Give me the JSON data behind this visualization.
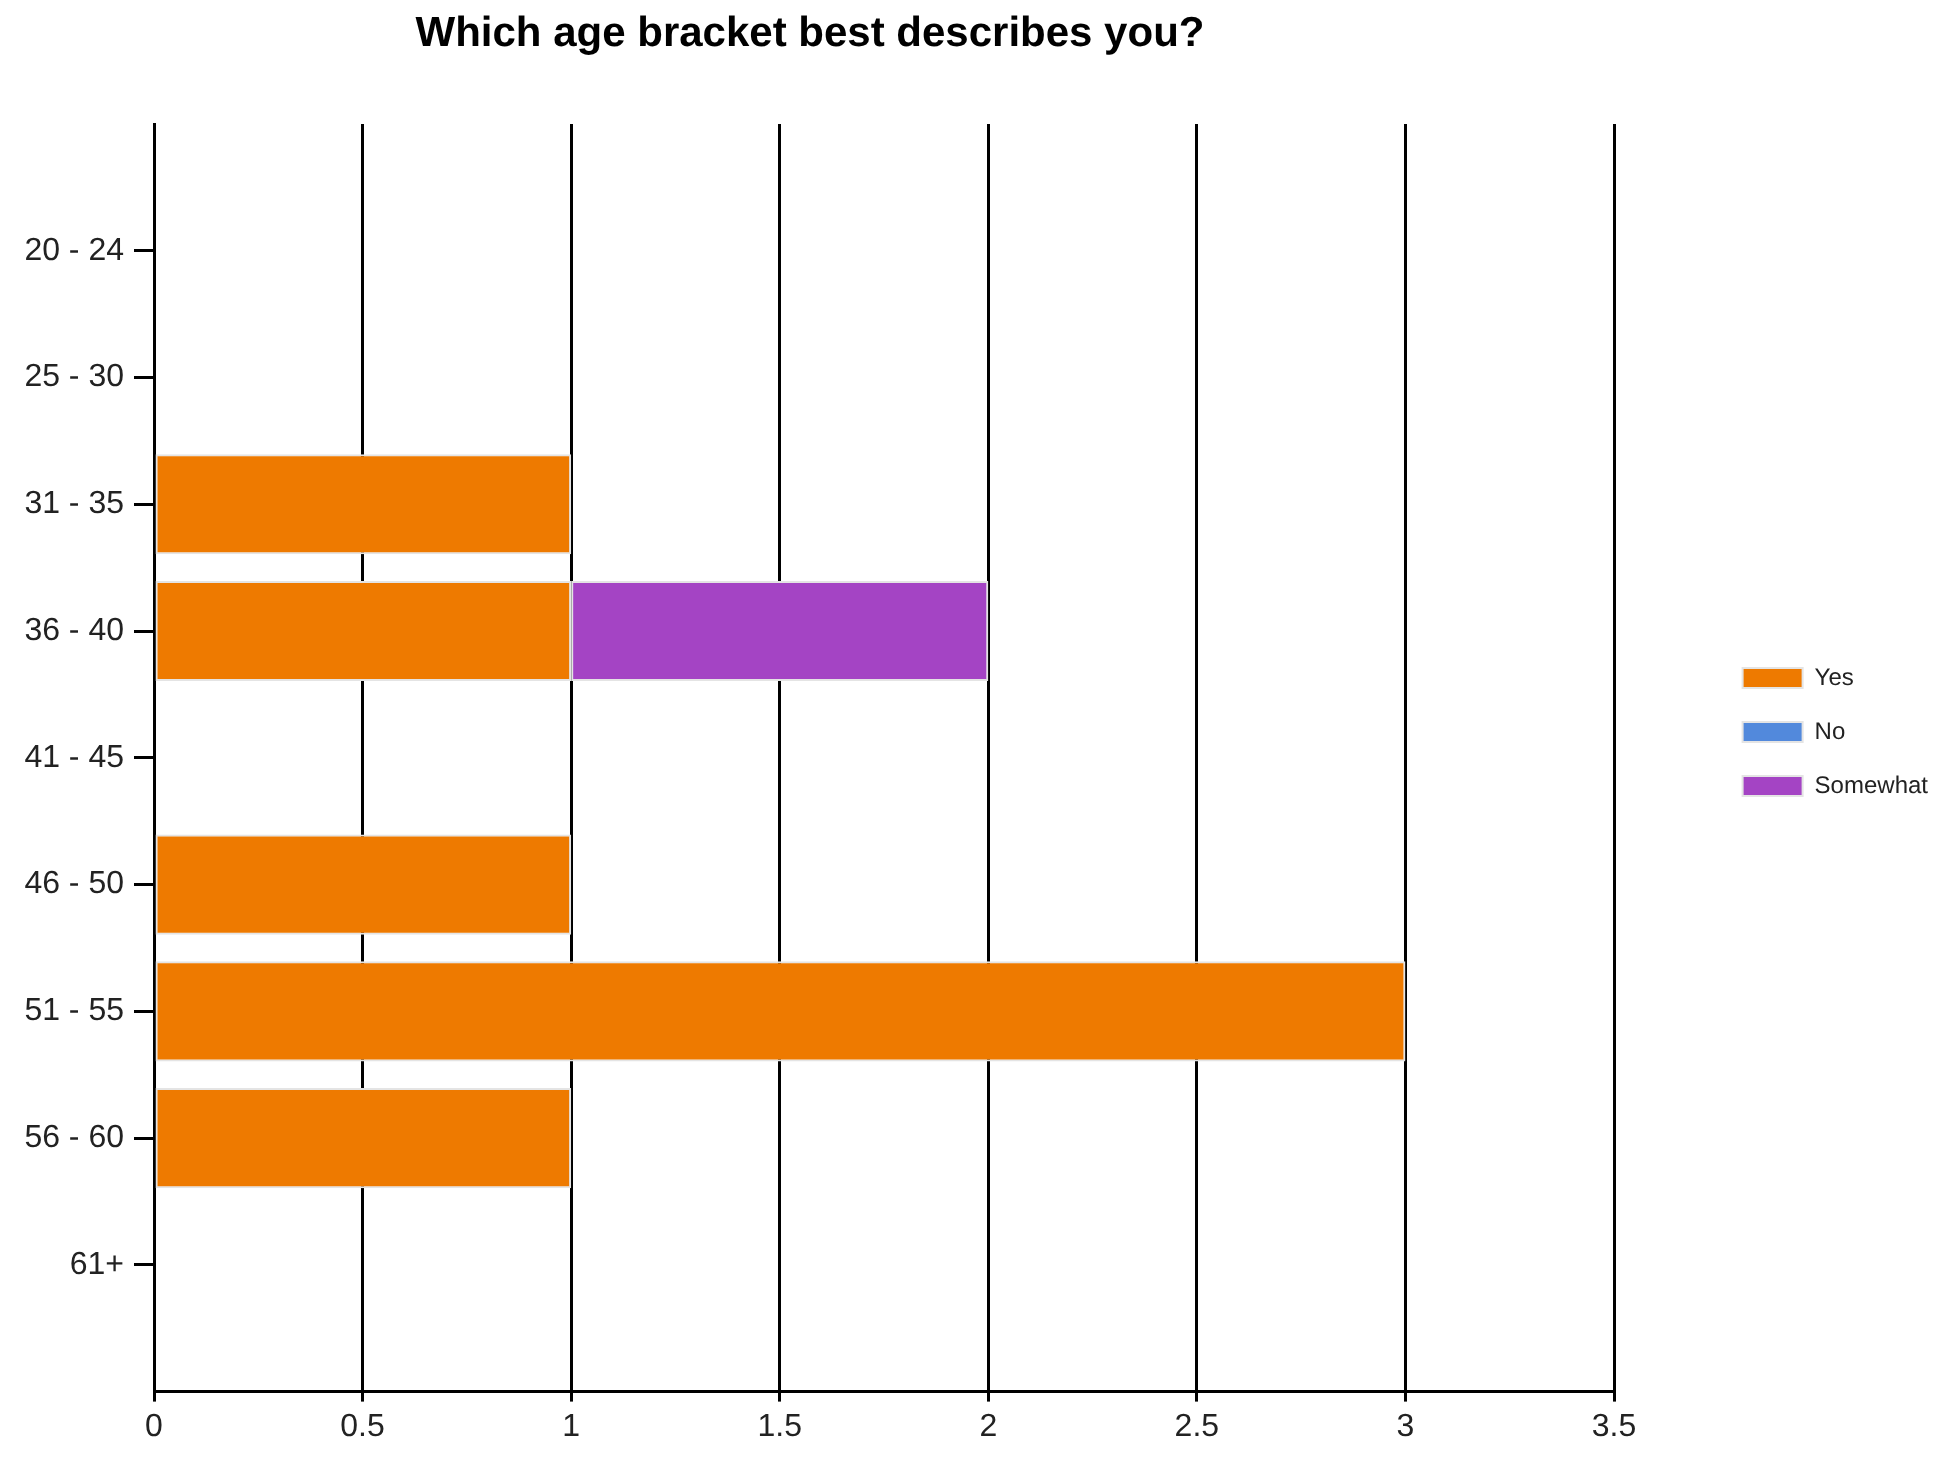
{
  "chart_data": {
    "type": "bar",
    "orientation": "horizontal",
    "stacked": true,
    "title": "Which age bracket best describes you?",
    "categories": [
      "20 - 24",
      "25 - 30",
      "31 - 35",
      "36 - 40",
      "41 - 45",
      "46 - 50",
      "51 - 55",
      "56 - 60",
      "61+"
    ],
    "series": [
      {
        "name": "Yes",
        "color": "#ee7a00",
        "values": [
          0,
          0,
          1,
          1,
          0,
          1,
          3,
          1,
          0
        ]
      },
      {
        "name": "No",
        "color": "#5289dc",
        "values": [
          0,
          0,
          0,
          0,
          0,
          0,
          0,
          0,
          0
        ]
      },
      {
        "name": "Somewhat",
        "color": "#a444c4",
        "values": [
          0,
          0,
          0,
          1,
          0,
          0,
          0,
          0,
          0
        ]
      }
    ],
    "xlim": [
      0,
      3.5
    ],
    "xticks": [
      0,
      0.5,
      1,
      1.5,
      2,
      2.5,
      3,
      3.5
    ],
    "grid": "x",
    "legend": "right"
  }
}
